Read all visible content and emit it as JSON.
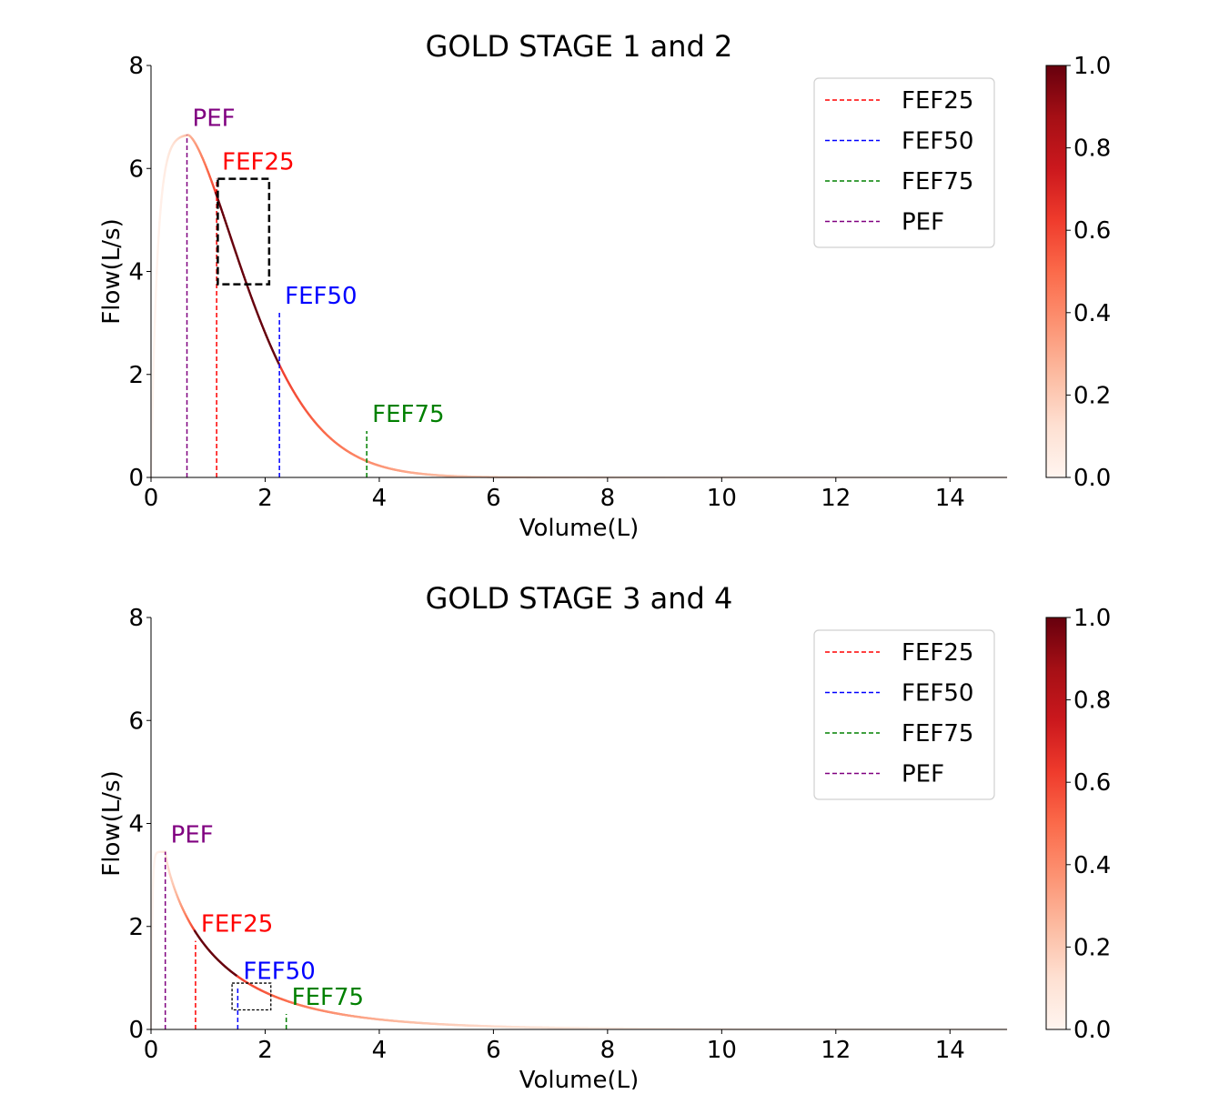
{
  "chart_data": [
    {
      "type": "line",
      "title": "GOLD STAGE 1 and 2",
      "xlabel": "Volume(L)",
      "ylabel": "Flow(L/s)",
      "xlim": [
        0,
        15
      ],
      "ylim": [
        0,
        8
      ],
      "xticks": [
        "0",
        "2",
        "4",
        "6",
        "8",
        "10",
        "12",
        "14"
      ],
      "yticks": [
        "0",
        "2",
        "4",
        "6",
        "8"
      ],
      "curve": {
        "peak_volume": 0.65,
        "peak_flow": 6.65,
        "decay_k": 0.55,
        "decay_p": 1.5,
        "rise": 0.17,
        "end_volume": 15
      },
      "markers": [
        {
          "label": "PEF",
          "volume": 0.63,
          "flow": 6.65,
          "color": "#800080"
        },
        {
          "label": "FEF25",
          "volume": 1.15,
          "flow": 5.8,
          "color": "#ff0000"
        },
        {
          "label": "FEF50",
          "volume": 2.25,
          "flow": 3.2,
          "color": "#0000ff"
        },
        {
          "label": "FEF75",
          "volume": 3.78,
          "flow": 0.9,
          "color": "#008000"
        }
      ],
      "highlight_box": {
        "v0": 1.17,
        "v1": 2.07,
        "f0": 3.75,
        "f1": 5.8,
        "style": "thick"
      },
      "legend": [
        "FEF25",
        "FEF50",
        "FEF75",
        "PEF"
      ],
      "legend_colors": [
        "#ff0000",
        "#0000ff",
        "#008000",
        "#800080"
      ],
      "legend_position": "top-right",
      "colorbar": {
        "ticks": [
          "0.0",
          "0.2",
          "0.4",
          "0.6",
          "0.8",
          "1.0"
        ],
        "cmap": "Reds"
      }
    },
    {
      "type": "line",
      "title": "GOLD STAGE 3 and 4",
      "xlabel": "Volume(L)",
      "ylabel": "Flow(L/s)",
      "xlim": [
        0,
        15
      ],
      "ylim": [
        0,
        8
      ],
      "xticks": [
        "0",
        "2",
        "4",
        "6",
        "8",
        "10",
        "12",
        "14"
      ],
      "yticks": [
        "0",
        "2",
        "4",
        "6",
        "8"
      ],
      "curve": {
        "peak_volume": 0.25,
        "peak_flow": 3.45,
        "decay_k": 1.0,
        "decay_p": 0.8,
        "rise": 0.08,
        "end_volume": 15
      },
      "markers": [
        {
          "label": "PEF",
          "volume": 0.25,
          "flow": 3.45,
          "color": "#800080"
        },
        {
          "label": "FEF25",
          "volume": 0.78,
          "flow": 1.72,
          "color": "#ff0000"
        },
        {
          "label": "FEF50",
          "volume": 1.52,
          "flow": 0.8,
          "color": "#0000ff"
        },
        {
          "label": "FEF75",
          "volume": 2.37,
          "flow": 0.3,
          "color": "#008000"
        }
      ],
      "highlight_box": {
        "v0": 1.42,
        "v1": 2.1,
        "f0": 0.38,
        "f1": 0.9,
        "style": "thin"
      },
      "legend": [
        "FEF25",
        "FEF50",
        "FEF75",
        "PEF"
      ],
      "legend_colors": [
        "#ff0000",
        "#0000ff",
        "#008000",
        "#800080"
      ],
      "legend_position": "top-right",
      "colorbar": {
        "ticks": [
          "0.0",
          "0.2",
          "0.4",
          "0.6",
          "0.8",
          "1.0"
        ],
        "cmap": "Reds"
      }
    }
  ]
}
